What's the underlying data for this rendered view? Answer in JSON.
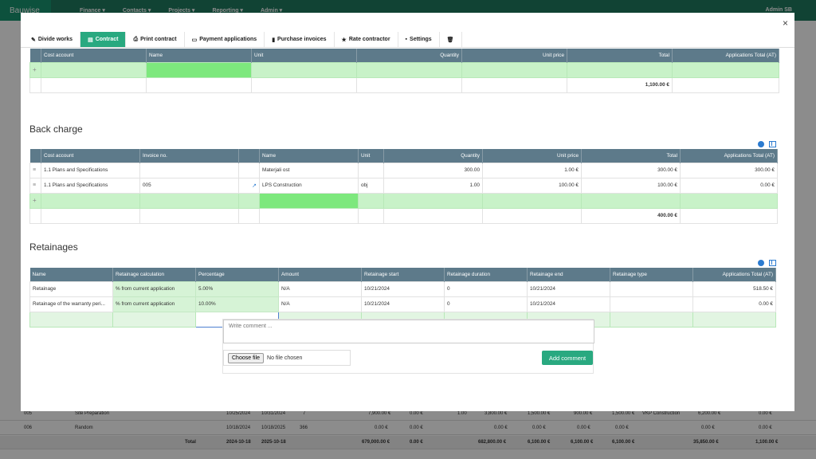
{
  "background": {
    "brand": "Bauwise",
    "menu": [
      "Finance ▾",
      "Contacts ▾",
      "Projects ▾",
      "Reporting ▾",
      "Admin ▾"
    ],
    "user": "Admin SB",
    "rows": [
      {
        "id": "005",
        "name": "Site Preparation",
        "start": "10/25/2024",
        "end": "10/31/2024",
        "count": "7",
        "budget": "7,900.00 €",
        "a": "0.00 €",
        "b": "1.00",
        "c": "3,800.00 €",
        "d": "1,500.00 €",
        "e": "900.00 €",
        "f": "1,500.00 €",
        "contractor": "VKP Construction",
        "g": "6,200.00 €",
        "h": "0.00 €"
      },
      {
        "id": "006",
        "name": "Random",
        "start": "10/18/2024",
        "end": "10/18/2025",
        "count": "366",
        "budget": "0.00 €",
        "a": "0.00 €",
        "b": "",
        "c": "0.00 €",
        "d": "0.00 €",
        "e": "0.00 €",
        "f": "0.00 €",
        "contractor": "",
        "g": "0.00 €",
        "h": "0.00 €"
      }
    ],
    "total": {
      "label": "Total",
      "start": "2024-10-18",
      "end": "2025-10-18",
      "budget": "679,000.00 €",
      "a": "0.00 €",
      "c": "682,800.00 €",
      "d": "6,100.00 €",
      "e": "6,100.00 €",
      "f": "6,100.00 €",
      "g": "35,850.00 €",
      "h": "1,100.00 €"
    }
  },
  "modal": {
    "close": "×",
    "tabs": [
      {
        "label": "Divide works",
        "icon": "pencil-icon"
      },
      {
        "label": "Contract",
        "icon": "document-icon",
        "active": true
      },
      {
        "label": "Print contract",
        "icon": "printer-icon"
      },
      {
        "label": "Payment applications",
        "icon": "folder-icon"
      },
      {
        "label": "Purchase invoices",
        "icon": "book-icon"
      },
      {
        "label": "Rate contractor",
        "icon": "star-icon"
      },
      {
        "label": "Settings",
        "icon": "briefcase-icon"
      },
      {
        "label": "",
        "icon": "trash-icon"
      }
    ],
    "items_table": {
      "headers": [
        "Cost account",
        "Name",
        "Unit",
        "Quantity",
        "Unit price",
        "Total",
        "Applications Total (AT)"
      ],
      "total": "1,100.00 €"
    },
    "back_charge": {
      "title": "Back charge",
      "headers": [
        "Cost account",
        "Invoice no.",
        "",
        "Name",
        "Unit",
        "Quantity",
        "Unit price",
        "Total",
        "Applications Total (AT)"
      ],
      "rows": [
        {
          "cost_account": "1.1 Plans and Specifications",
          "invoice": "",
          "name": "Materjali ost",
          "unit": "",
          "quantity": "300.00",
          "unit_price": "1.00 €",
          "total": "300.00 €",
          "at": "300.00 €"
        },
        {
          "cost_account": "1.1 Plans and Specifications",
          "invoice": "005",
          "name": "LPS Construction",
          "unit": "obj",
          "quantity": "1.00",
          "unit_price": "100.00 €",
          "total": "100.00 €",
          "at": "0.00 €"
        }
      ],
      "total": "400.00 €"
    },
    "retainages": {
      "title": "Retainages",
      "headers": [
        "Name",
        "Retainage calculation",
        "Percentage",
        "Amount",
        "Retainage start",
        "Retainage duration",
        "Retainage end",
        "Retainage type",
        "Applications Total (AT)"
      ],
      "rows": [
        {
          "name": "Retainage",
          "calc": "% from current application",
          "pct": "5.00%",
          "amount": "N/A",
          "start": "10/21/2024",
          "duration": "0",
          "end": "10/21/2024",
          "type": "",
          "at": "518.50 €"
        },
        {
          "name": "Retainage of the warranty peri...",
          "calc": "% from current application",
          "pct": "10.00%",
          "amount": "N/A",
          "start": "10/21/2024",
          "duration": "0",
          "end": "10/21/2024",
          "type": "",
          "at": "0.00 €"
        }
      ]
    },
    "comment": {
      "placeholder": "Write comment ...",
      "choose_file": "Choose file",
      "no_file": "No file chosen",
      "add": "Add comment"
    }
  },
  "colors": {
    "accent": "#29a980",
    "header": "#5d7a8a",
    "new_row": "#c8f2c8",
    "link": "#2b7bd0"
  }
}
